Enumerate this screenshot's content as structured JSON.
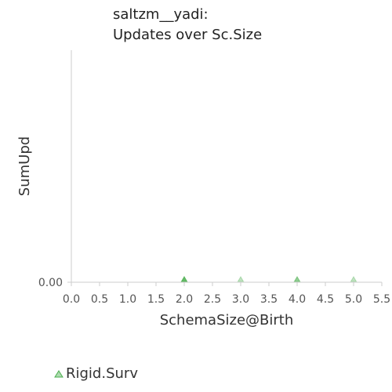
{
  "chart_data": {
    "type": "scatter",
    "title": [
      "saltzm__yadi:",
      "Updates over Sc.Size"
    ],
    "xlabel": "SchemaSize@Birth",
    "ylabel": "SumUpd",
    "xlim": [
      0.0,
      5.5
    ],
    "xticks": [
      "0.0",
      "0.5",
      "1.0",
      "1.5",
      "2.0",
      "2.5",
      "3.0",
      "3.5",
      "4.0",
      "4.5",
      "5.5"
    ],
    "xtick_values": [
      0.0,
      0.5,
      1.0,
      1.5,
      2.0,
      2.5,
      3.0,
      3.5,
      4.0,
      4.5,
      5.5
    ],
    "xtick_label_5_0": "5.0",
    "yticks": [
      "0.00"
    ],
    "ytick_values": [
      0.0
    ],
    "grid": false,
    "legend_position": "bottom-left",
    "series": [
      {
        "name": "Rigid.Surv",
        "color": "#4caf50",
        "marker": "triangle",
        "points": [
          {
            "x": 2.0,
            "y": 0.0,
            "opacity": 0.85
          },
          {
            "x": 3.0,
            "y": 0.0,
            "opacity": 0.35
          },
          {
            "x": 4.0,
            "y": 0.0,
            "opacity": 0.6
          },
          {
            "x": 5.0,
            "y": 0.0,
            "opacity": 0.35
          }
        ]
      }
    ]
  }
}
